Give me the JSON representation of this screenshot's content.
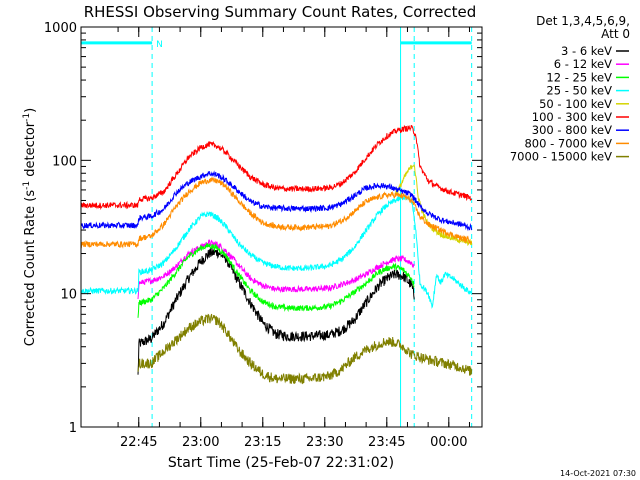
{
  "chart_data": {
    "type": "line",
    "title": "RHESSI Observing Summary Count Rates, Corrected",
    "xlabel": "Start Time (25-Feb-07 22:31:02)",
    "ylabel_main": "Corrected Count Rate (s",
    "ylabel_sup1": "-1",
    "ylabel_mid": " detector",
    "ylabel_sup2": "-1",
    "ylabel_end": ")",
    "footer": "14-Oct-2021 07:30",
    "y_scale": "log",
    "ylim": [
      1,
      1000
    ],
    "xlim_minutes": [
      0,
      97
    ],
    "x_ticks": [
      {
        "minute": 13.97,
        "label": "22:45"
      },
      {
        "minute": 28.97,
        "label": "23:00"
      },
      {
        "minute": 43.97,
        "label": "23:15"
      },
      {
        "minute": 58.97,
        "label": "23:30"
      },
      {
        "minute": 73.97,
        "label": "23:45"
      },
      {
        "minute": 88.97,
        "label": "00:00"
      }
    ],
    "y_ticks": [
      {
        "value": 1,
        "label": "1"
      },
      {
        "value": 10,
        "label": "10"
      },
      {
        "value": 100,
        "label": "100"
      },
      {
        "value": 1000,
        "label": "1000"
      }
    ],
    "legend_header": [
      "Det 1,3,4,5,6,9,",
      "Att 0"
    ],
    "legend_position": "right",
    "background": "#ffffff",
    "axis_color": "#000000",
    "markers": {
      "color": "#00ffff",
      "night_label": "N",
      "dashed_minutes": [
        17.2,
        80.6,
        94.5
      ],
      "solid_minutes": [
        0,
        77.3
      ],
      "night_intervals": [
        [
          0,
          17.2
        ],
        [
          77.3,
          94.5
        ]
      ],
      "night_level": 760
    },
    "series": [
      {
        "name": "3 - 6 keV",
        "color": "#000000",
        "points": [
          [
            13.8,
            2.4
          ],
          [
            14.0,
            4.2
          ],
          [
            17,
            4.6
          ],
          [
            20,
            6.0
          ],
          [
            23,
            9.0
          ],
          [
            26,
            13.0
          ],
          [
            29,
            17.5
          ],
          [
            31,
            20.0
          ],
          [
            33,
            20.5
          ],
          [
            35,
            18.5
          ],
          [
            38,
            12.5
          ],
          [
            41,
            8.5
          ],
          [
            44,
            6.0
          ],
          [
            47,
            5.0
          ],
          [
            50,
            4.8
          ],
          [
            55,
            4.8
          ],
          [
            60,
            4.9
          ],
          [
            63,
            5.3
          ],
          [
            66,
            6.3
          ],
          [
            69,
            8.6
          ],
          [
            72,
            11.5
          ],
          [
            74,
            13.0
          ],
          [
            76,
            14.0
          ],
          [
            78,
            13.5
          ],
          [
            80,
            11.5
          ],
          [
            80.6,
            9.5
          ]
        ]
      },
      {
        "name": "6 - 12 keV",
        "color": "#ff00ff",
        "points": [
          [
            13.8,
            9.5
          ],
          [
            14.0,
            12.0
          ],
          [
            17,
            12.5
          ],
          [
            20,
            13.5
          ],
          [
            23,
            16.0
          ],
          [
            26,
            20.0
          ],
          [
            29,
            22.5
          ],
          [
            31,
            24.0
          ],
          [
            33,
            23.5
          ],
          [
            35,
            21.0
          ],
          [
            38,
            16.5
          ],
          [
            41,
            13.0
          ],
          [
            44,
            11.5
          ],
          [
            47,
            10.8
          ],
          [
            50,
            10.8
          ],
          [
            55,
            10.8
          ],
          [
            60,
            11.0
          ],
          [
            63,
            11.7
          ],
          [
            66,
            12.6
          ],
          [
            69,
            14.0
          ],
          [
            72,
            16.0
          ],
          [
            74,
            17.2
          ],
          [
            76,
            18.2
          ],
          [
            78,
            18.2
          ],
          [
            80,
            17.0
          ],
          [
            80.6,
            16.0
          ]
        ]
      },
      {
        "name": "12 - 25 keV",
        "color": "#00ff00",
        "points": [
          [
            13.8,
            6.8
          ],
          [
            14.0,
            8.5
          ],
          [
            17,
            9.0
          ],
          [
            20,
            11.0
          ],
          [
            23,
            14.5
          ],
          [
            26,
            19.0
          ],
          [
            29,
            22.0
          ],
          [
            31,
            23.0
          ],
          [
            33,
            22.0
          ],
          [
            35,
            19.5
          ],
          [
            38,
            14.0
          ],
          [
            41,
            10.5
          ],
          [
            44,
            8.7
          ],
          [
            47,
            8.0
          ],
          [
            50,
            7.8
          ],
          [
            55,
            7.8
          ],
          [
            60,
            8.0
          ],
          [
            63,
            8.8
          ],
          [
            66,
            10.2
          ],
          [
            69,
            12.0
          ],
          [
            72,
            14.5
          ],
          [
            74,
            15.5
          ],
          [
            76,
            16.0
          ],
          [
            78,
            15.0
          ],
          [
            80,
            13.0
          ],
          [
            80.6,
            11.5
          ]
        ]
      },
      {
        "name": "25 - 50 keV",
        "color": "#00ffff",
        "points": [
          [
            0,
            10.5
          ],
          [
            13.8,
            10.5
          ],
          [
            14.0,
            14.5
          ],
          [
            17,
            15.0
          ],
          [
            20,
            17.0
          ],
          [
            23,
            22.0
          ],
          [
            26,
            30.0
          ],
          [
            29,
            38.0
          ],
          [
            31,
            40.0
          ],
          [
            33,
            37.0
          ],
          [
            35,
            32.0
          ],
          [
            38,
            24.0
          ],
          [
            41,
            19.5
          ],
          [
            44,
            17.0
          ],
          [
            47,
            16.0
          ],
          [
            50,
            15.5
          ],
          [
            55,
            15.5
          ],
          [
            60,
            16.2
          ],
          [
            63,
            18.0
          ],
          [
            66,
            22.0
          ],
          [
            69,
            30.0
          ],
          [
            72,
            40.0
          ],
          [
            74,
            46.0
          ],
          [
            76,
            50.0
          ],
          [
            78,
            53.0
          ],
          [
            80,
            50.0
          ],
          [
            81,
            30.0
          ],
          [
            82,
            12.0
          ],
          [
            84,
            10.0
          ],
          [
            85,
            8.0
          ],
          [
            86,
            14.0
          ],
          [
            87,
            12.0
          ],
          [
            88,
            14.0
          ],
          [
            90,
            13.0
          ],
          [
            92,
            11.5
          ],
          [
            94.5,
            10.0
          ]
        ]
      },
      {
        "name": "50 - 100 keV",
        "color": "#d4d400",
        "points": [
          [
            76,
            56
          ],
          [
            77,
            62
          ],
          [
            78,
            72
          ],
          [
            79,
            82
          ],
          [
            80,
            90
          ],
          [
            80.6,
            95
          ],
          [
            81.5,
            55
          ],
          [
            82.5,
            42
          ],
          [
            83.5,
            35
          ],
          [
            85,
            31
          ],
          [
            87,
            28
          ],
          [
            89,
            26.5
          ],
          [
            91,
            25.5
          ],
          [
            93,
            24.5
          ],
          [
            94.5,
            24.0
          ]
        ]
      },
      {
        "name": "100 - 300 keV",
        "color": "#ff0000",
        "points": [
          [
            0,
            46
          ],
          [
            13.8,
            46
          ],
          [
            14.0,
            51
          ],
          [
            17,
            52
          ],
          [
            20,
            58
          ],
          [
            23,
            78
          ],
          [
            26,
            105
          ],
          [
            29,
            125
          ],
          [
            31,
            132
          ],
          [
            33,
            128
          ],
          [
            35,
            115
          ],
          [
            38,
            92
          ],
          [
            41,
            75
          ],
          [
            44,
            66
          ],
          [
            47,
            62
          ],
          [
            50,
            61
          ],
          [
            55,
            61
          ],
          [
            60,
            62
          ],
          [
            63,
            67
          ],
          [
            66,
            80
          ],
          [
            69,
            105
          ],
          [
            72,
            135
          ],
          [
            74,
            152
          ],
          [
            76,
            165
          ],
          [
            78,
            172
          ],
          [
            80,
            175
          ],
          [
            81,
            155
          ],
          [
            82,
            90
          ],
          [
            84,
            70
          ],
          [
            86,
            64
          ],
          [
            88,
            60
          ],
          [
            90,
            57
          ],
          [
            92,
            55
          ],
          [
            94.5,
            52
          ]
        ]
      },
      {
        "name": "300 - 800 keV",
        "color": "#0000ff",
        "points": [
          [
            0,
            32.5
          ],
          [
            13.8,
            32.5
          ],
          [
            14.0,
            37
          ],
          [
            17,
            38
          ],
          [
            20,
            43
          ],
          [
            23,
            57
          ],
          [
            26,
            68
          ],
          [
            29,
            76
          ],
          [
            31,
            80
          ],
          [
            33,
            78
          ],
          [
            35,
            71
          ],
          [
            38,
            59
          ],
          [
            41,
            49
          ],
          [
            44,
            45
          ],
          [
            47,
            44
          ],
          [
            50,
            43.5
          ],
          [
            55,
            43.5
          ],
          [
            60,
            44
          ],
          [
            63,
            47
          ],
          [
            66,
            54
          ],
          [
            69,
            62
          ],
          [
            72,
            65
          ],
          [
            74,
            64
          ],
          [
            76,
            61
          ],
          [
            78,
            58
          ],
          [
            80,
            55
          ],
          [
            82,
            45
          ],
          [
            84,
            40
          ],
          [
            86,
            37
          ],
          [
            88,
            35
          ],
          [
            90,
            34
          ],
          [
            92,
            33
          ],
          [
            94.5,
            31
          ]
        ]
      },
      {
        "name": "800 - 7000 keV",
        "color": "#ff8c00",
        "points": [
          [
            0,
            23.5
          ],
          [
            13.8,
            23.5
          ],
          [
            14.0,
            26
          ],
          [
            17,
            27
          ],
          [
            20,
            33
          ],
          [
            23,
            45
          ],
          [
            26,
            58
          ],
          [
            29,
            68
          ],
          [
            31,
            71
          ],
          [
            33,
            70
          ],
          [
            35,
            64
          ],
          [
            38,
            50
          ],
          [
            41,
            40
          ],
          [
            44,
            34
          ],
          [
            47,
            32
          ],
          [
            50,
            31.5
          ],
          [
            55,
            31.5
          ],
          [
            60,
            32
          ],
          [
            63,
            35
          ],
          [
            66,
            41
          ],
          [
            69,
            49
          ],
          [
            72,
            53
          ],
          [
            74,
            55
          ],
          [
            76,
            55
          ],
          [
            78,
            54
          ],
          [
            80,
            50
          ],
          [
            82,
            38
          ],
          [
            84,
            33
          ],
          [
            86,
            31
          ],
          [
            88,
            29
          ],
          [
            90,
            27.5
          ],
          [
            92,
            26
          ],
          [
            94.5,
            25
          ]
        ]
      },
      {
        "name": "7000 - 15000 keV",
        "color": "#808000",
        "points": [
          [
            13.8,
            2.4
          ],
          [
            14.0,
            3.0
          ],
          [
            17,
            3.0
          ],
          [
            20,
            3.7
          ],
          [
            23,
            4.5
          ],
          [
            26,
            5.5
          ],
          [
            29,
            6.2
          ],
          [
            31,
            6.5
          ],
          [
            33,
            6.3
          ],
          [
            35,
            5.3
          ],
          [
            38,
            3.8
          ],
          [
            41,
            3.0
          ],
          [
            44,
            2.5
          ],
          [
            47,
            2.3
          ],
          [
            50,
            2.3
          ],
          [
            55,
            2.3
          ],
          [
            60,
            2.4
          ],
          [
            63,
            2.7
          ],
          [
            66,
            3.3
          ],
          [
            69,
            3.8
          ],
          [
            72,
            4.2
          ],
          [
            74,
            4.4
          ],
          [
            76,
            4.3
          ],
          [
            78,
            4.0
          ],
          [
            80,
            3.5
          ],
          [
            84,
            3.2
          ],
          [
            88,
            3.0
          ],
          [
            92,
            2.8
          ],
          [
            94.5,
            2.6
          ]
        ]
      }
    ]
  }
}
